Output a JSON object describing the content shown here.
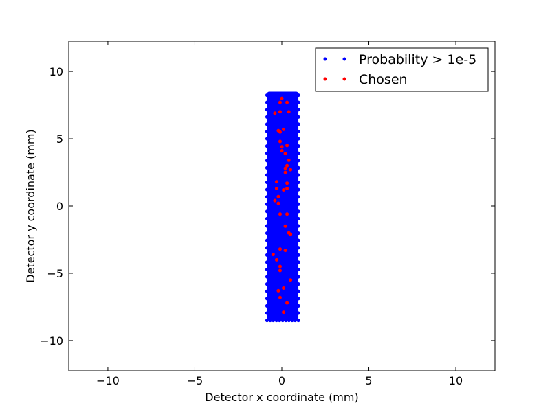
{
  "chart_data": {
    "type": "scatter",
    "xlabel": "Detector x coordinate (mm)",
    "ylabel": "Detector y coordinate (mm)",
    "xlim": [
      -12.25,
      12.25
    ],
    "ylim": [
      -12.25,
      12.25
    ],
    "x_ticks": [
      -10,
      -5,
      0,
      5,
      10
    ],
    "y_ticks": [
      -10,
      -5,
      0,
      5,
      10
    ],
    "x_tick_labels": [
      "−10",
      "−5",
      "0",
      "5",
      "10"
    ],
    "y_tick_labels": [
      "−10",
      "−5",
      "0",
      "5",
      "10"
    ],
    "grid": false,
    "legend_position": "top-right",
    "series": [
      {
        "name": "Probability > 1e-5",
        "color": "#0000ff",
        "region": {
          "x": [
            -0.85,
            0.95
          ],
          "y": [
            -8.5,
            8.5
          ]
        },
        "grid_step": [
          0.09,
          0.09
        ]
      },
      {
        "name": "Chosen",
        "color": "#ff0000",
        "points": [
          [
            0.0,
            8.0
          ],
          [
            -0.1,
            7.7
          ],
          [
            0.3,
            7.7
          ],
          [
            -0.1,
            7.0
          ],
          [
            -0.4,
            6.9
          ],
          [
            0.4,
            7.0
          ],
          [
            -0.2,
            5.6
          ],
          [
            -0.1,
            5.5
          ],
          [
            0.1,
            5.7
          ],
          [
            -0.1,
            4.8
          ],
          [
            0.3,
            4.5
          ],
          [
            0.0,
            4.4
          ],
          [
            0.0,
            4.1
          ],
          [
            0.2,
            3.9
          ],
          [
            0.4,
            3.4
          ],
          [
            0.3,
            3.0
          ],
          [
            0.2,
            2.8
          ],
          [
            0.5,
            2.7
          ],
          [
            0.2,
            2.5
          ],
          [
            -0.3,
            1.8
          ],
          [
            0.3,
            1.7
          ],
          [
            -0.3,
            1.3
          ],
          [
            0.3,
            1.3
          ],
          [
            0.1,
            1.2
          ],
          [
            -0.2,
            0.7
          ],
          [
            -0.4,
            0.4
          ],
          [
            -0.2,
            0.2
          ],
          [
            -0.1,
            -0.6
          ],
          [
            0.3,
            -0.6
          ],
          [
            0.2,
            -1.5
          ],
          [
            0.4,
            -2.0
          ],
          [
            0.5,
            -2.1
          ],
          [
            -0.1,
            -3.2
          ],
          [
            0.2,
            -3.3
          ],
          [
            -0.5,
            -3.6
          ],
          [
            -0.3,
            -4.0
          ],
          [
            -0.1,
            -4.5
          ],
          [
            -0.1,
            -4.8
          ],
          [
            0.5,
            -5.5
          ],
          [
            0.1,
            -6.1
          ],
          [
            -0.2,
            -6.3
          ],
          [
            -0.1,
            -6.8
          ],
          [
            0.3,
            -7.2
          ],
          [
            0.1,
            -7.9
          ]
        ]
      }
    ]
  }
}
